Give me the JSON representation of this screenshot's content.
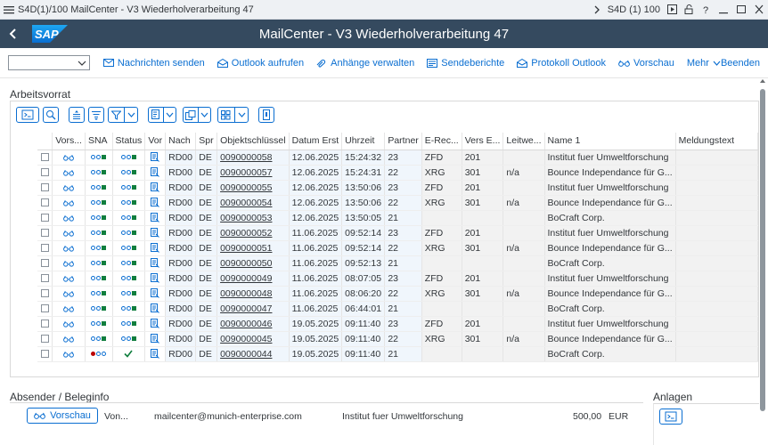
{
  "window": {
    "title": "S4D(1)/100 MailCenter - V3 Wiederholverarbeitung   47",
    "system": "S4D (1) 100"
  },
  "shell": {
    "title": "MailCenter - V3 Wiederholverarbeitung   47",
    "logo_text": "SAP"
  },
  "toolbar": {
    "dropdown_value": "",
    "buttons": [
      "Nachrichten senden",
      "Outlook aufrufen",
      "Anhänge verwalten",
      "Sendeberichte",
      "Protokoll Outlook",
      "Vorschau",
      "Mehr"
    ],
    "exit": "Beenden"
  },
  "worklist": {
    "title": "Arbeitsvorrat"
  },
  "grid": {
    "columns": [
      "Vors...",
      "SNA",
      "Status",
      "Vor",
      "Nach",
      "Spr",
      "Objektschlüssel",
      "Datum Erst",
      "Uhrzeit",
      "Partner",
      "E-Rec...",
      "Vers E...",
      "Leitwe...",
      "Name 1",
      "Meldungstext"
    ],
    "rows": [
      {
        "nach": "RD00",
        "spr": "DE",
        "key": "0090000058",
        "date": "12.06.2025",
        "time": "15:24:32",
        "partner": "23",
        "erec": "ZFD",
        "vers": "201",
        "leit": "",
        "name": "Institut fuer Umweltforschung",
        "msg": "",
        "sna": "ok",
        "status": "ok"
      },
      {
        "nach": "RD00",
        "spr": "DE",
        "key": "0090000057",
        "date": "12.06.2025",
        "time": "15:24:31",
        "partner": "22",
        "erec": "XRG",
        "vers": "301",
        "leit": "n/a",
        "name": "Bounce Independance für G...",
        "msg": "",
        "sna": "ok",
        "status": "ok"
      },
      {
        "nach": "RD00",
        "spr": "DE",
        "key": "0090000055",
        "date": "12.06.2025",
        "time": "13:50:06",
        "partner": "23",
        "erec": "ZFD",
        "vers": "201",
        "leit": "",
        "name": "Institut fuer Umweltforschung",
        "msg": "",
        "sna": "ok",
        "status": "ok"
      },
      {
        "nach": "RD00",
        "spr": "DE",
        "key": "0090000054",
        "date": "12.06.2025",
        "time": "13:50:06",
        "partner": "22",
        "erec": "XRG",
        "vers": "301",
        "leit": "n/a",
        "name": "Bounce Independance für G...",
        "msg": "",
        "sna": "ok",
        "status": "ok"
      },
      {
        "nach": "RD00",
        "spr": "DE",
        "key": "0090000053",
        "date": "12.06.2025",
        "time": "13:50:05",
        "partner": "21",
        "erec": "",
        "vers": "",
        "leit": "",
        "name": "BoCraft Corp.",
        "msg": "",
        "sna": "ok",
        "status": "ok"
      },
      {
        "nach": "RD00",
        "spr": "DE",
        "key": "0090000052",
        "date": "11.06.2025",
        "time": "09:52:14",
        "partner": "23",
        "erec": "ZFD",
        "vers": "201",
        "leit": "",
        "name": "Institut fuer Umweltforschung",
        "msg": "",
        "sna": "ok",
        "status": "ok"
      },
      {
        "nach": "RD00",
        "spr": "DE",
        "key": "0090000051",
        "date": "11.06.2025",
        "time": "09:52:14",
        "partner": "22",
        "erec": "XRG",
        "vers": "301",
        "leit": "n/a",
        "name": "Bounce Independance für G...",
        "msg": "",
        "sna": "ok",
        "status": "ok"
      },
      {
        "nach": "RD00",
        "spr": "DE",
        "key": "0090000050",
        "date": "11.06.2025",
        "time": "09:52:13",
        "partner": "21",
        "erec": "",
        "vers": "",
        "leit": "",
        "name": "BoCraft Corp.",
        "msg": "",
        "sna": "ok",
        "status": "ok"
      },
      {
        "nach": "RD00",
        "spr": "DE",
        "key": "0090000049",
        "date": "11.06.2025",
        "time": "08:07:05",
        "partner": "23",
        "erec": "ZFD",
        "vers": "201",
        "leit": "",
        "name": "Institut fuer Umweltforschung",
        "msg": "",
        "sna": "ok",
        "status": "ok"
      },
      {
        "nach": "RD00",
        "spr": "DE",
        "key": "0090000048",
        "date": "11.06.2025",
        "time": "08:06:20",
        "partner": "22",
        "erec": "XRG",
        "vers": "301",
        "leit": "n/a",
        "name": "Bounce Independance für G...",
        "msg": "",
        "sna": "ok",
        "status": "ok"
      },
      {
        "nach": "RD00",
        "spr": "DE",
        "key": "0090000047",
        "date": "11.06.2025",
        "time": "06:44:01",
        "partner": "21",
        "erec": "",
        "vers": "",
        "leit": "",
        "name": "BoCraft Corp.",
        "msg": "",
        "sna": "ok",
        "status": "ok"
      },
      {
        "nach": "RD00",
        "spr": "DE",
        "key": "0090000046",
        "date": "19.05.2025",
        "time": "09:11:40",
        "partner": "23",
        "erec": "ZFD",
        "vers": "201",
        "leit": "",
        "name": "Institut fuer Umweltforschung",
        "msg": "",
        "sna": "ok",
        "status": "ok"
      },
      {
        "nach": "RD00",
        "spr": "DE",
        "key": "0090000045",
        "date": "19.05.2025",
        "time": "09:11:40",
        "partner": "22",
        "erec": "XRG",
        "vers": "301",
        "leit": "n/a",
        "name": "Bounce Independance für G...",
        "msg": "",
        "sna": "ok",
        "status": "ok"
      },
      {
        "nach": "RD00",
        "spr": "DE",
        "key": "0090000044",
        "date": "19.05.2025",
        "time": "09:11:40",
        "partner": "21",
        "erec": "",
        "vers": "",
        "leit": "",
        "name": "BoCraft Corp.",
        "msg": "",
        "sna": "error",
        "status": "check"
      }
    ]
  },
  "sender": {
    "title": "Absender / Beleginfo",
    "preview_button": "Vorschau",
    "from_label": "Von...",
    "email": "mailcenter@munich-enterprise.com",
    "recipient": "Institut fuer Umweltforschung",
    "amount": "500,00",
    "currency": "EUR"
  },
  "attachments": {
    "title": "Anlagen"
  },
  "colors": {
    "shell": "#354a5f",
    "accent": "#0a6ed1",
    "success": "#107e3e",
    "error": "#bb0000"
  }
}
